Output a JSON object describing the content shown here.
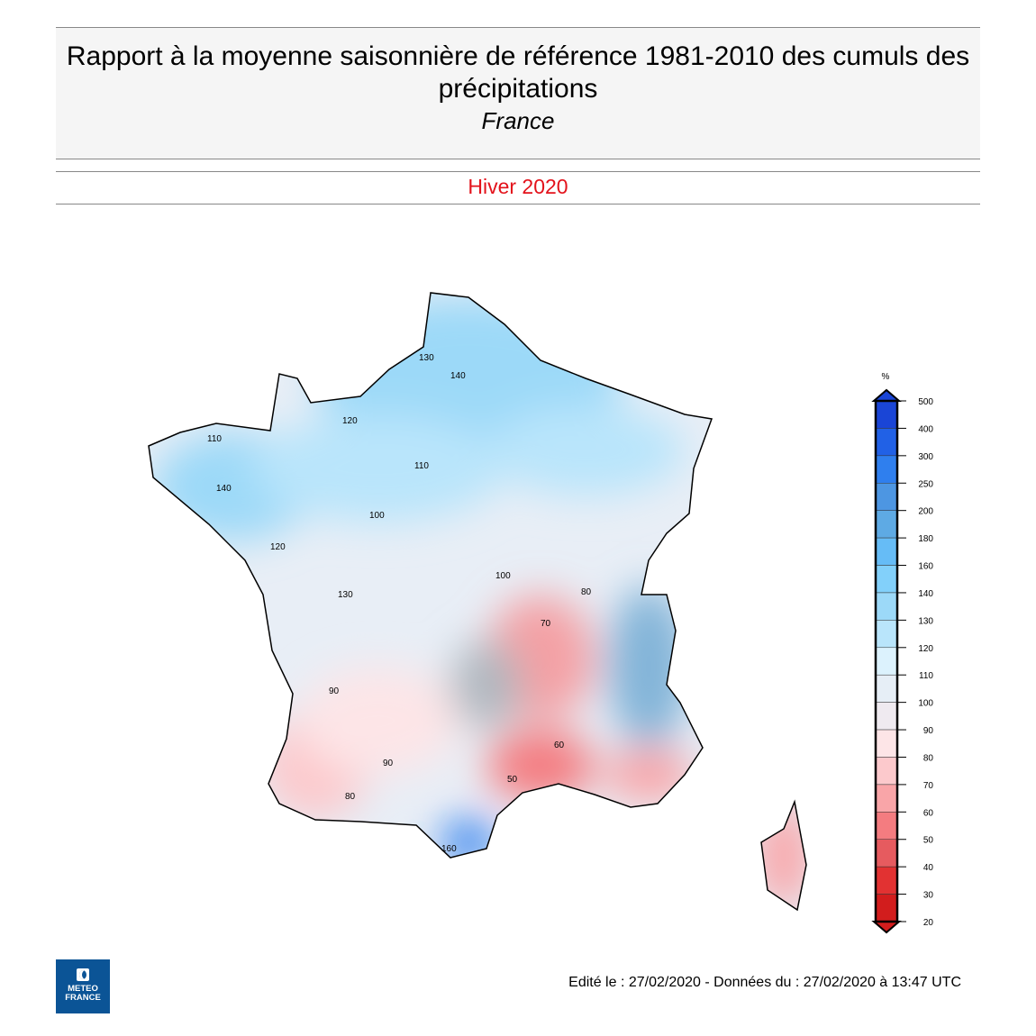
{
  "header": {
    "title": "Rapport à la moyenne saisonnière de référence 1981-2010 des cumuls des précipitations",
    "region": "France"
  },
  "period": "Hiver 2020",
  "legend": {
    "unit": "%",
    "ticks": [
      "500",
      "400",
      "300",
      "250",
      "200",
      "180",
      "160",
      "140",
      "130",
      "120",
      "110",
      "100",
      "90",
      "80",
      "70",
      "60",
      "50",
      "40",
      "30",
      "20"
    ],
    "colors": [
      "#1a45d6",
      "#2161e6",
      "#2f7fee",
      "#4d96e2",
      "#5eaae4",
      "#66bcf6",
      "#82d0fa",
      "#9cd9f8",
      "#b9e5fb",
      "#dcf2fd",
      "#e6eef6",
      "#efeaf0",
      "#fde5e7",
      "#fcc9cc",
      "#f9a5a8",
      "#f47c80",
      "#e65b5f",
      "#e23232",
      "#d21d1d"
    ]
  },
  "map": {
    "contour_labels": [
      "130",
      "140",
      "120",
      "110",
      "100",
      "90",
      "80",
      "70",
      "60",
      "50",
      "140",
      "130",
      "120",
      "110",
      "100",
      "90",
      "80",
      "160"
    ]
  },
  "footer": "Edité le : 27/02/2020 - Données du : 27/02/2020 à 13:47 UTC",
  "logo": {
    "line1": "METEO",
    "line2": "FRANCE"
  }
}
